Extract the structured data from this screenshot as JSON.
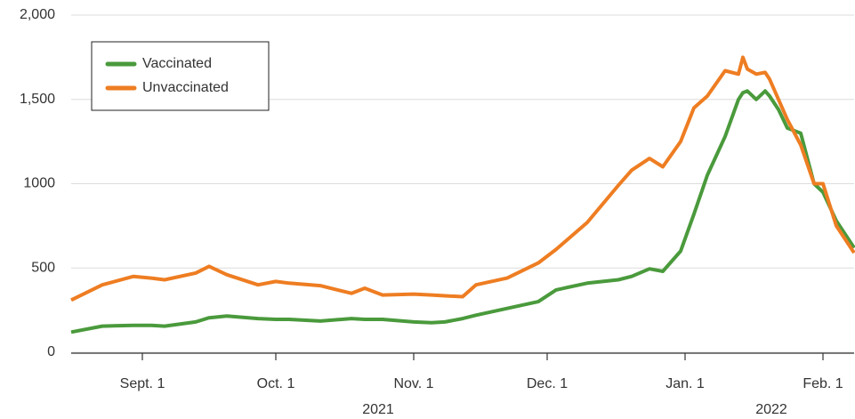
{
  "chart_data": {
    "type": "line",
    "x": [
      "2021-08-16",
      "2021-08-23",
      "2021-08-30",
      "2021-09-03",
      "2021-09-06",
      "2021-09-13",
      "2021-09-16",
      "2021-09-20",
      "2021-09-27",
      "2021-10-01",
      "2021-10-04",
      "2021-10-11",
      "2021-10-18",
      "2021-10-21",
      "2021-10-25",
      "2021-11-01",
      "2021-11-05",
      "2021-11-08",
      "2021-11-12",
      "2021-11-15",
      "2021-11-22",
      "2021-11-29",
      "2021-12-03",
      "2021-12-10",
      "2021-12-17",
      "2021-12-20",
      "2021-12-24",
      "2021-12-27",
      "2021-12-31",
      "2022-01-03",
      "2022-01-06",
      "2022-01-10",
      "2022-01-13",
      "2022-01-14",
      "2022-01-15",
      "2022-01-17",
      "2022-01-19",
      "2022-01-20",
      "2022-01-22",
      "2022-01-24",
      "2022-01-27",
      "2022-01-30",
      "2022-02-01",
      "2022-02-04",
      "2022-02-08"
    ],
    "series": [
      {
        "name": "Vaccinated",
        "color": "#4a9a3c",
        "values": [
          120,
          155,
          160,
          160,
          155,
          180,
          205,
          215,
          200,
          195,
          195,
          185,
          200,
          195,
          195,
          180,
          175,
          180,
          200,
          220,
          260,
          300,
          370,
          410,
          430,
          450,
          495,
          480,
          600,
          820,
          1050,
          1280,
          1500,
          1540,
          1550,
          1500,
          1550,
          1520,
          1440,
          1330,
          1300,
          1000,
          950,
          780,
          620
        ]
      },
      {
        "name": "Unvaccinated",
        "color": "#ee7d22",
        "values": [
          310,
          400,
          450,
          440,
          430,
          470,
          510,
          460,
          400,
          420,
          410,
          395,
          350,
          380,
          340,
          345,
          340,
          335,
          330,
          400,
          440,
          530,
          610,
          770,
          990,
          1080,
          1150,
          1100,
          1250,
          1450,
          1520,
          1670,
          1650,
          1750,
          1680,
          1650,
          1660,
          1620,
          1500,
          1380,
          1230,
          1000,
          1000,
          750,
          590
        ]
      }
    ],
    "xlim": [
      "2021-08-16",
      "2022-02-08"
    ],
    "xticks": [
      {
        "value": "2021-09-01",
        "label": "Sept. 1"
      },
      {
        "value": "2021-10-01",
        "label": "Oct. 1"
      },
      {
        "value": "2021-11-01",
        "label": "Nov. 1"
      },
      {
        "value": "2021-12-01",
        "label": "Dec. 1"
      },
      {
        "value": "2022-01-01",
        "label": "Jan. 1"
      },
      {
        "value": "2022-02-01",
        "label": "Feb. 1"
      }
    ],
    "year_labels": [
      "2021",
      "2022"
    ],
    "ylim": [
      0,
      2000
    ],
    "yticks": [
      0,
      500,
      1000,
      {
        "value": 1500,
        "label": "1,500"
      },
      {
        "value": 2000,
        "label": "2,000"
      }
    ],
    "grid": true,
    "legend": "upper left"
  }
}
